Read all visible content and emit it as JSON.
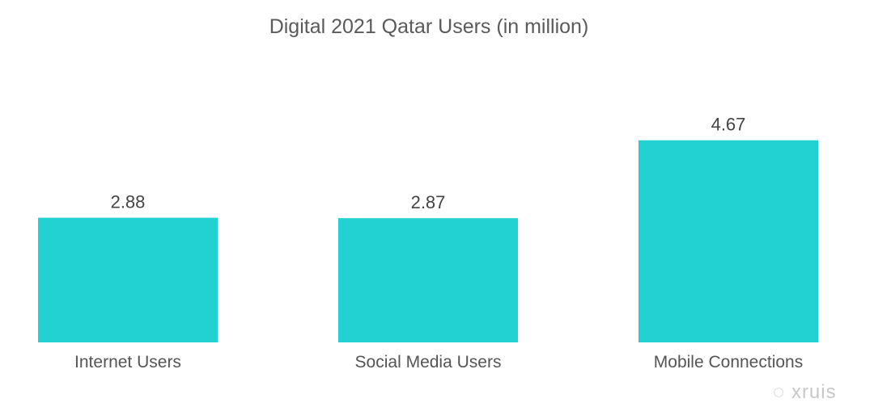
{
  "chart_data": {
    "type": "bar",
    "title": "Digital 2021 Qatar Users (in million)",
    "categories": [
      "Internet Users",
      "Social Media Users",
      "Mobile Connections"
    ],
    "values": [
      2.88,
      2.87,
      4.67
    ],
    "xlabel": "",
    "ylabel": "",
    "ylim": [
      0,
      5.5
    ],
    "grid": false,
    "color": "#22d1d2"
  },
  "watermark": "xruis"
}
